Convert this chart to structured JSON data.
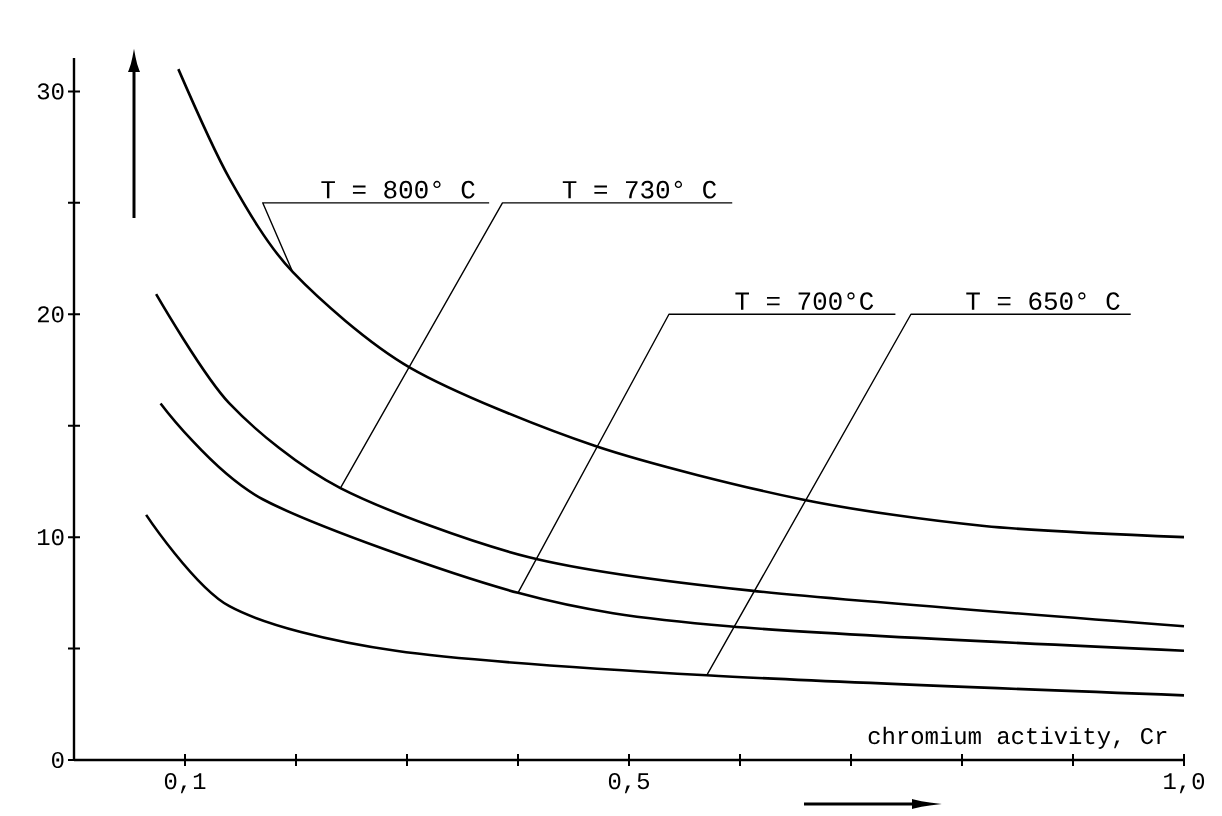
{
  "chart_data": {
    "type": "line",
    "xlabel": "chromium activity, Cr",
    "xlim": [
      0,
      1.0
    ],
    "ylim": [
      0,
      31.5
    ],
    "xticks": [
      {
        "value": 0.1,
        "label": "0,1"
      },
      {
        "value": 0.2,
        "label": null
      },
      {
        "value": 0.3,
        "label": null
      },
      {
        "value": 0.4,
        "label": null
      },
      {
        "value": 0.5,
        "label": "0,5"
      },
      {
        "value": 0.6,
        "label": null
      },
      {
        "value": 0.7,
        "label": null
      },
      {
        "value": 0.8,
        "label": null
      },
      {
        "value": 0.9,
        "label": null
      },
      {
        "value": 1.0,
        "label": "1,0"
      }
    ],
    "yticks": [
      0,
      {
        "value": 5,
        "label": null
      },
      10,
      {
        "value": 15,
        "label": null
      },
      20,
      {
        "value": 25,
        "label": null
      },
      30
    ],
    "legend": false,
    "grid": false,
    "marker": "none",
    "line_style": "solid",
    "series": [
      {
        "name": "T = 800° C",
        "color": "#000000",
        "x": [
          0.094,
          0.14,
          0.197,
          0.303,
          0.469,
          0.655,
          0.82,
          1.0
        ],
        "values": [
          31.0,
          26.1,
          21.9,
          17.6,
          14.1,
          11.7,
          10.5,
          10.0
        ]
      },
      {
        "name": "T = 730° C",
        "color": "#000000",
        "x": [
          0.074,
          0.14,
          0.24,
          0.41,
          0.61,
          1.0
        ],
        "values": [
          20.9,
          16.0,
          12.2,
          9.1,
          7.6,
          6.0
        ]
      },
      {
        "name": "T = 700°C",
        "color": "#000000",
        "x": [
          0.078,
          0.17,
          0.4,
          0.59,
          1.0
        ],
        "values": [
          16.0,
          11.7,
          7.5,
          6.0,
          4.9
        ]
      },
      {
        "name": "T = 650° C",
        "color": "#000000",
        "x": [
          0.065,
          0.14,
          0.29,
          0.57,
          1.0
        ],
        "values": [
          11.0,
          6.9,
          4.9,
          3.8,
          2.9
        ]
      }
    ]
  }
}
